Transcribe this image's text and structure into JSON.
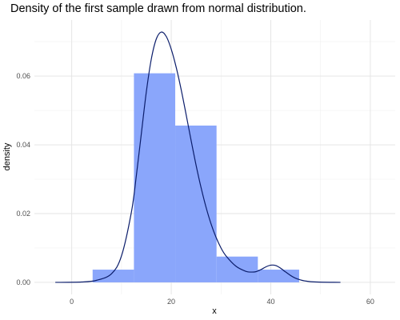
{
  "chart_data": {
    "type": "histogram",
    "title": "Density of the first sample drawn from normal distribution.",
    "xlabel": "x",
    "ylabel": "density",
    "xlim": [
      -7.5,
      65
    ],
    "ylim": [
      -0.0035,
      0.0763
    ],
    "x_ticks": [
      0,
      20,
      40,
      60
    ],
    "y_ticks": [
      0.0,
      0.02,
      0.04,
      0.06
    ],
    "y_tick_labels": [
      "0.00",
      "0.02",
      "0.04",
      "0.06"
    ],
    "grid": true,
    "histogram_bins": [
      {
        "x0": 4.2,
        "x1": 12.5,
        "density": 0.0037
      },
      {
        "x0": 12.5,
        "x1": 20.8,
        "density": 0.0608
      },
      {
        "x0": 20.8,
        "x1": 29.1,
        "density": 0.0456
      },
      {
        "x0": 29.1,
        "x1": 37.4,
        "density": 0.0075
      },
      {
        "x0": 37.4,
        "x1": 45.7,
        "density": 0.0037
      }
    ],
    "bar_color": "#8aa6fb",
    "density_line_color": "#0b1d6b",
    "density_curve": {
      "x": [
        -3.3,
        2,
        5,
        8,
        10,
        12,
        13,
        14,
        15,
        16,
        17,
        18,
        19,
        20,
        21,
        22,
        23,
        24,
        25,
        26,
        27,
        28,
        29,
        30,
        31,
        33,
        35,
        36,
        37,
        38,
        39,
        40,
        41,
        42,
        43,
        45,
        48,
        54
      ],
      "y": [
        0.0,
        0.0001,
        0.0006,
        0.0025,
        0.0077,
        0.0205,
        0.0312,
        0.0434,
        0.0555,
        0.065,
        0.0708,
        0.0728,
        0.0715,
        0.0678,
        0.0625,
        0.056,
        0.0487,
        0.0412,
        0.034,
        0.0275,
        0.0218,
        0.017,
        0.0131,
        0.01,
        0.0077,
        0.0047,
        0.0032,
        0.003,
        0.0031,
        0.0037,
        0.0045,
        0.005,
        0.0049,
        0.0041,
        0.003,
        0.0012,
        0.0002,
        0.0
      ]
    }
  }
}
